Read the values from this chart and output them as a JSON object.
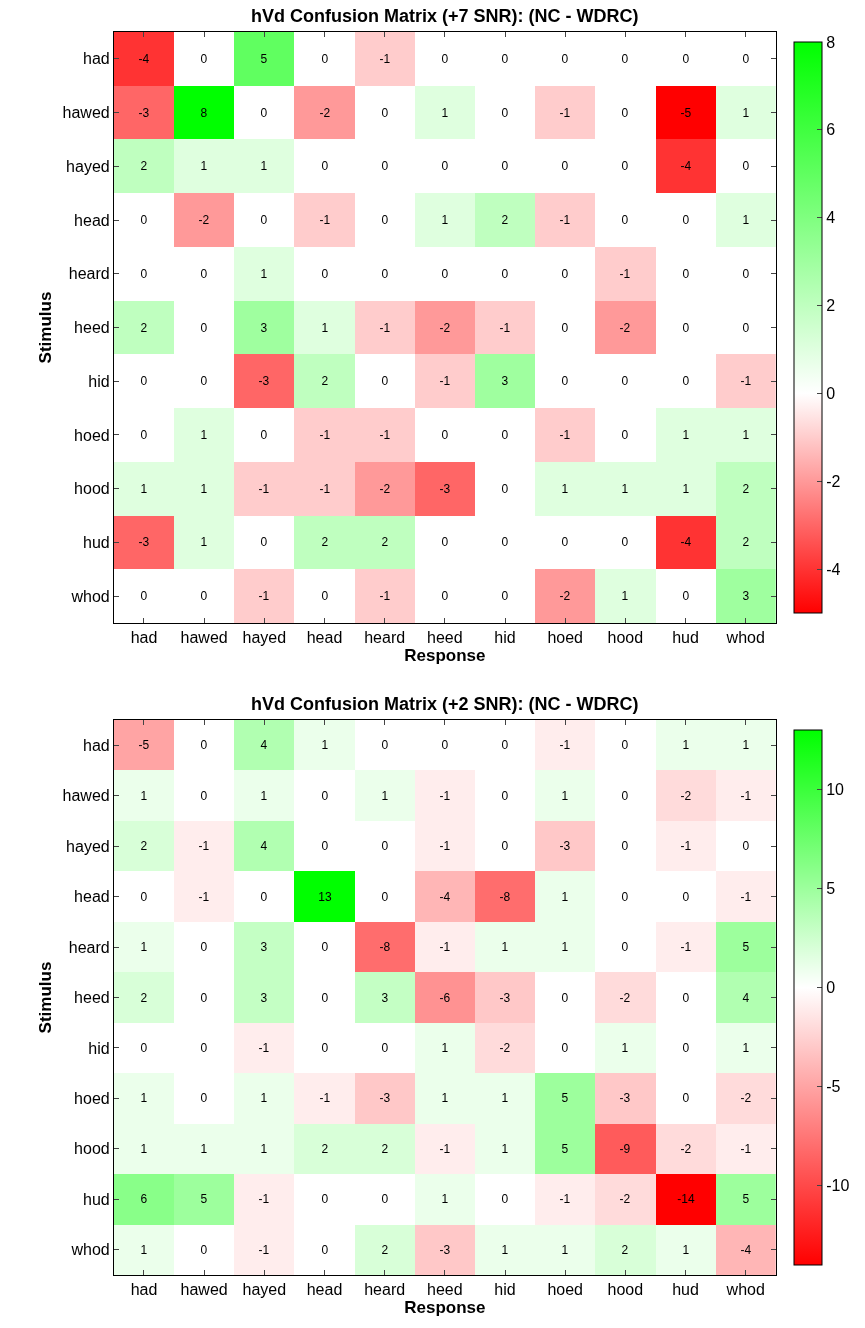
{
  "chart_data": [
    {
      "type": "heatmap",
      "title": "hVd Confusion Matrix (+7 SNR): (NC - WDRC)",
      "xlabel": "Response",
      "ylabel": "Stimulus",
      "categories": [
        "had",
        "hawed",
        "hayed",
        "head",
        "heard",
        "heed",
        "hid",
        "hoed",
        "hood",
        "hud",
        "whod"
      ],
      "y_categories": [
        "had",
        "hawed",
        "hayed",
        "head",
        "heard",
        "heed",
        "hid",
        "hoed",
        "hood",
        "hud",
        "whod"
      ],
      "cells": [
        [
          -4,
          0,
          5,
          0,
          -1,
          0,
          0,
          0,
          0,
          0,
          0
        ],
        [
          -3,
          8,
          0,
          -2,
          0,
          1,
          0,
          -1,
          0,
          -5,
          1
        ],
        [
          2,
          1,
          1,
          0,
          0,
          0,
          0,
          0,
          0,
          -4,
          0
        ],
        [
          0,
          -2,
          0,
          -1,
          0,
          1,
          2,
          -1,
          0,
          0,
          1
        ],
        [
          0,
          0,
          1,
          0,
          0,
          0,
          0,
          0,
          -1,
          0,
          0
        ],
        [
          2,
          0,
          3,
          1,
          -1,
          -2,
          -1,
          0,
          -2,
          0,
          0
        ],
        [
          0,
          0,
          -3,
          2,
          0,
          -1,
          3,
          0,
          0,
          0,
          -1
        ],
        [
          0,
          1,
          0,
          -1,
          -1,
          0,
          0,
          -1,
          0,
          1,
          1
        ],
        [
          1,
          1,
          -1,
          -1,
          -2,
          -3,
          0,
          1,
          1,
          1,
          2
        ],
        [
          -3,
          1,
          0,
          2,
          2,
          0,
          0,
          0,
          0,
          -4,
          2
        ],
        [
          0,
          0,
          -1,
          0,
          -1,
          0,
          0,
          -2,
          1,
          0,
          3
        ]
      ],
      "clim": [
        -5,
        8
      ],
      "cticks": [
        -4,
        -2,
        0,
        2,
        4,
        6,
        8
      ],
      "data_labels": true
    },
    {
      "type": "heatmap",
      "title": "hVd Confusion Matrix (+2 SNR): (NC - WDRC)",
      "xlabel": "Response",
      "ylabel": "Stimulus",
      "categories": [
        "had",
        "hawed",
        "hayed",
        "head",
        "heard",
        "heed",
        "hid",
        "hoed",
        "hood",
        "hud",
        "whod"
      ],
      "y_categories": [
        "had",
        "hawed",
        "hayed",
        "head",
        "heard",
        "heed",
        "hid",
        "hoed",
        "hood",
        "hud",
        "whod"
      ],
      "cells": [
        [
          -5,
          0,
          4,
          1,
          0,
          0,
          0,
          -1,
          0,
          1,
          1
        ],
        [
          1,
          0,
          1,
          0,
          1,
          -1,
          0,
          1,
          0,
          -2,
          -1
        ],
        [
          2,
          -1,
          4,
          0,
          0,
          -1,
          0,
          -3,
          0,
          -1,
          0
        ],
        [
          0,
          -1,
          0,
          13,
          0,
          -4,
          -8,
          1,
          0,
          0,
          -1
        ],
        [
          1,
          0,
          3,
          0,
          -8,
          -1,
          1,
          1,
          0,
          -1,
          5
        ],
        [
          2,
          0,
          3,
          0,
          3,
          -6,
          -3,
          0,
          -2,
          0,
          4
        ],
        [
          0,
          0,
          -1,
          0,
          0,
          1,
          -2,
          0,
          1,
          0,
          1
        ],
        [
          1,
          0,
          1,
          -1,
          -3,
          1,
          1,
          5,
          -3,
          0,
          -2
        ],
        [
          1,
          1,
          1,
          2,
          2,
          -1,
          1,
          5,
          -9,
          -2,
          -1
        ],
        [
          6,
          5,
          -1,
          0,
          0,
          1,
          0,
          -1,
          -2,
          -14,
          5
        ],
        [
          1,
          0,
          -1,
          0,
          2,
          -3,
          1,
          1,
          2,
          1,
          -4
        ]
      ],
      "clim": [
        -14,
        13
      ],
      "cticks": [
        -10,
        -5,
        0,
        5,
        10
      ],
      "data_labels": true
    }
  ]
}
